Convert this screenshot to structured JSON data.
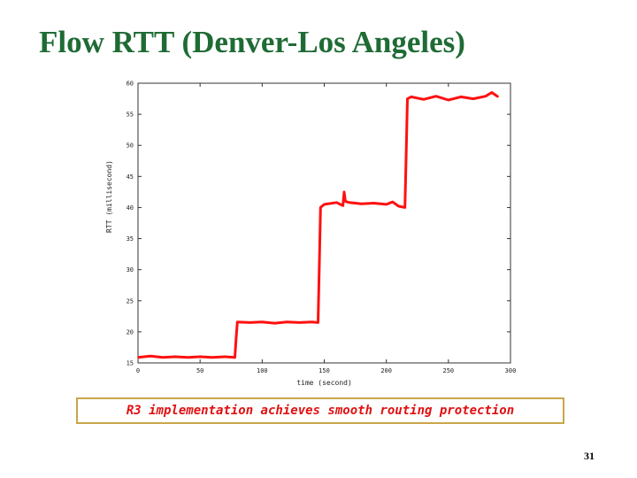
{
  "slide": {
    "title": "Flow RTT (Denver-Los Angeles)",
    "caption": "R3 implementation achieves smooth routing protection",
    "page_number": "31"
  },
  "colors": {
    "title": "#1f6b35",
    "line": "#ff1010",
    "caption_text": "#e01010",
    "caption_border": "#c9a64a"
  },
  "chart_data": {
    "type": "line",
    "title": "",
    "xlabel": "time (second)",
    "ylabel": "RTT (millisecond)",
    "xlim": [
      0,
      300
    ],
    "ylim": [
      15,
      60
    ],
    "x_ticks": [
      0,
      50,
      100,
      150,
      200,
      250,
      300
    ],
    "y_ticks": [
      15,
      20,
      25,
      30,
      35,
      40,
      45,
      50,
      55,
      60
    ],
    "grid": false,
    "series": [
      {
        "name": "RTT",
        "x": [
          0,
          10,
          20,
          30,
          40,
          50,
          60,
          70,
          78,
          79,
          80,
          90,
          100,
          110,
          120,
          130,
          140,
          145,
          146,
          147,
          150,
          160,
          165,
          166,
          167,
          170,
          180,
          190,
          200,
          205,
          210,
          215,
          216,
          217,
          220,
          230,
          240,
          250,
          260,
          270,
          280,
          285,
          290
        ],
        "values": [
          15.9,
          16.1,
          15.9,
          16.0,
          15.9,
          16.0,
          15.9,
          16.0,
          15.9,
          19.0,
          21.6,
          21.5,
          21.6,
          21.4,
          21.6,
          21.5,
          21.6,
          21.5,
          30.5,
          40.0,
          40.5,
          40.8,
          40.3,
          42.5,
          41.0,
          40.8,
          40.6,
          40.7,
          40.5,
          40.9,
          40.2,
          40.0,
          48.5,
          57.5,
          57.8,
          57.4,
          57.9,
          57.3,
          57.8,
          57.5,
          57.9,
          58.5,
          57.8
        ]
      }
    ]
  }
}
